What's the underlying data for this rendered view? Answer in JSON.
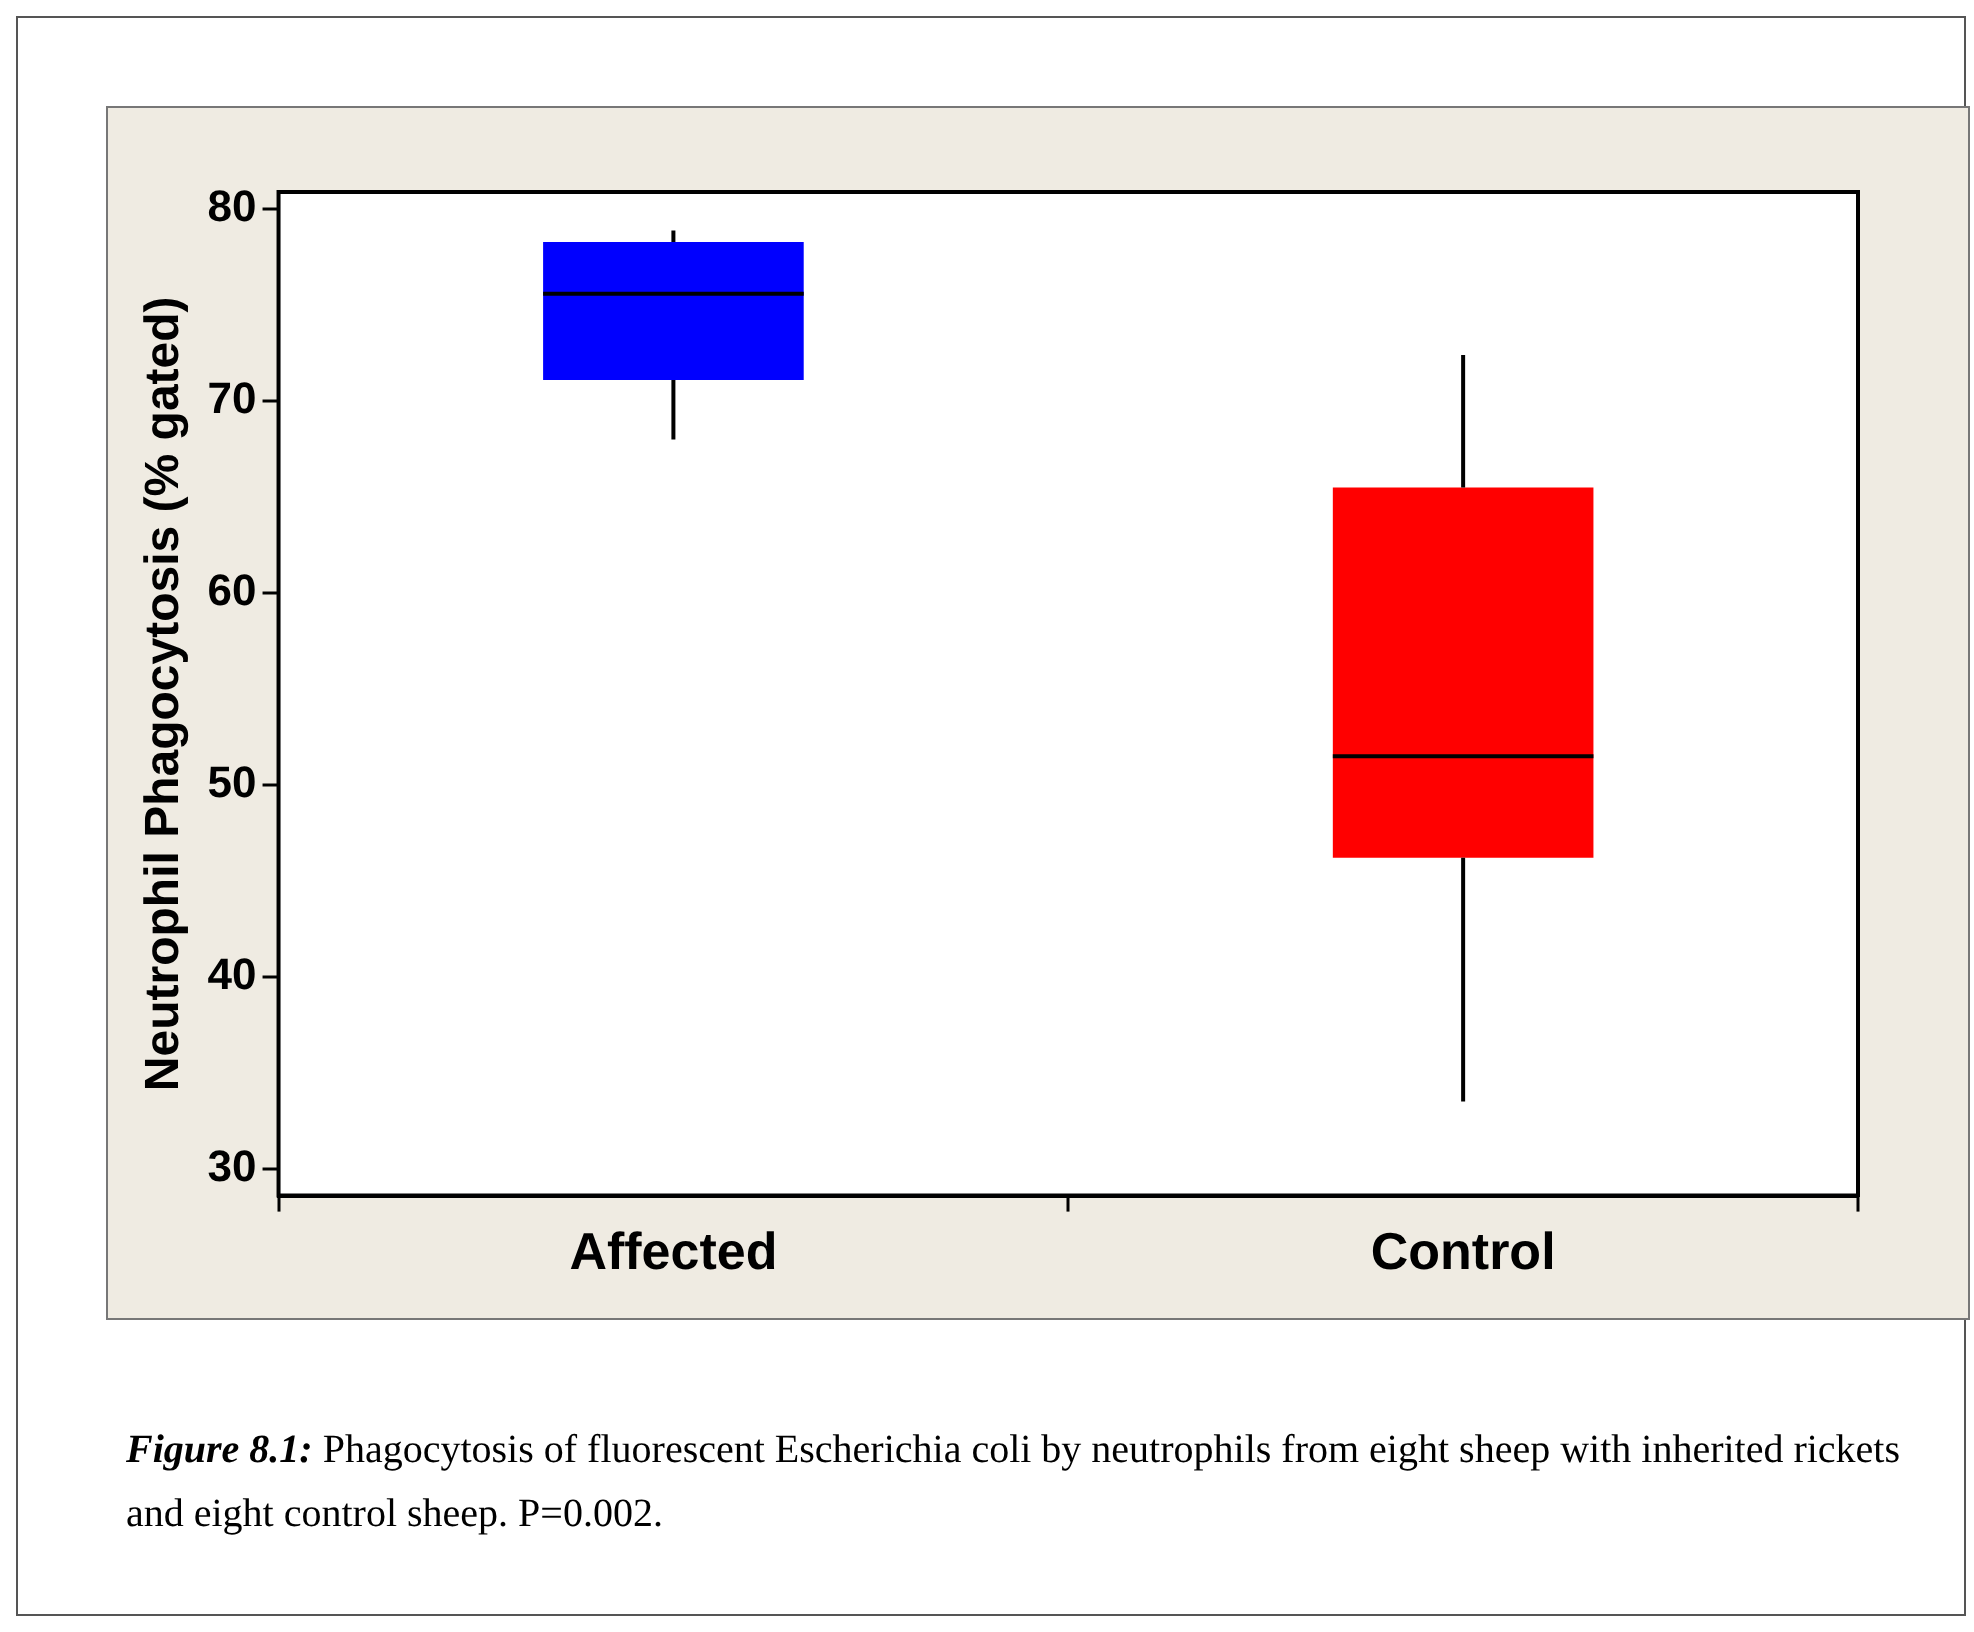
{
  "chart_data": {
    "type": "box",
    "ylabel": "Neutrophil Phagocytosis (% gated)",
    "categories": [
      "Affected",
      "Control"
    ],
    "colors": [
      "#0000ff",
      "#ff0000"
    ],
    "boxes": [
      {
        "low": 68.0,
        "q1": 71.1,
        "median": 75.6,
        "q3": 78.3,
        "high": 78.9
      },
      {
        "low": 33.5,
        "q1": 46.2,
        "median": 51.5,
        "q3": 65.5,
        "high": 72.4
      }
    ],
    "ylim": [
      28.6,
      80.9
    ],
    "yticks": [
      30,
      40,
      50,
      60,
      70,
      80
    ],
    "annotations": [
      "Figure 8.1: Phagocytosis of fluorescent Escherichia coli by neutrophils from eight sheep with inherited rickets and eight control sheep.   P=0.002."
    ]
  }
}
